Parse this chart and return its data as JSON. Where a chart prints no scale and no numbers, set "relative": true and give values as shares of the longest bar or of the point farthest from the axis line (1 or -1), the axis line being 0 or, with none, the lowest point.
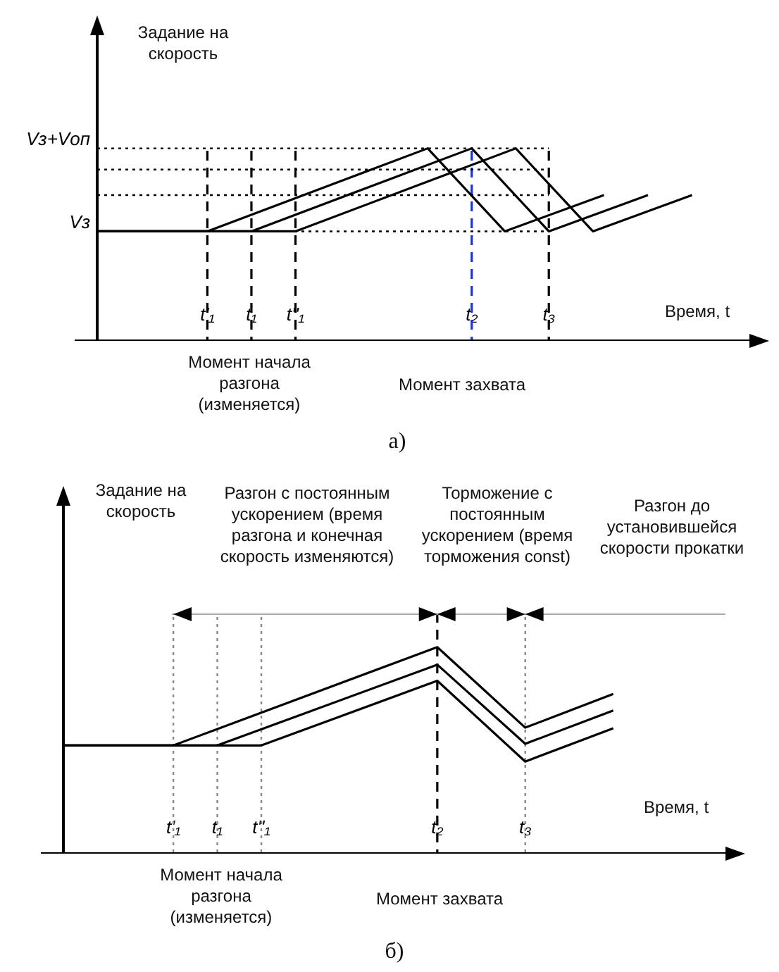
{
  "chart_data": [
    {
      "type": "line",
      "relative": true,
      "ylabel": "Задание на скорость",
      "xlabel": "Время, t",
      "categories": [
        null,
        null,
        null,
        null,
        null,
        null,
        null,
        null,
        null,
        null,
        "t'₁",
        null,
        null,
        null,
        "t₁",
        null,
        null,
        null,
        "t''₁",
        null,
        null,
        null,
        null,
        null,
        null,
        null,
        null,
        null,
        null,
        null,
        null,
        null,
        null,
        null,
        "t₂",
        null,
        null,
        null,
        null,
        null,
        null,
        "t₃",
        null,
        null,
        null,
        null,
        null,
        null,
        null,
        null,
        null,
        null,
        null,
        null,
        null,
        null,
        null,
        null,
        null,
        null,
        null,
        null
      ],
      "series": [
        {
          "color": "#000000",
          "values": [
            0.569,
            null,
            null,
            null,
            null,
            null,
            null,
            null,
            null,
            null,
            0.569,
            null,
            null,
            null,
            null,
            null,
            null,
            null,
            null,
            null,
            null,
            null,
            null,
            null,
            null,
            null,
            null,
            null,
            null,
            null,
            1,
            null,
            null,
            null,
            null,
            null,
            null,
            0.569,
            null,
            null,
            null,
            null,
            null,
            null,
            null,
            null,
            0.757,
            null,
            null,
            null,
            null,
            null,
            null,
            null,
            null,
            null,
            null,
            null,
            null,
            null,
            null,
            null
          ]
        },
        {
          "color": "#000000",
          "values": [
            0.569,
            null,
            null,
            null,
            null,
            null,
            null,
            null,
            null,
            null,
            null,
            null,
            null,
            null,
            0.569,
            null,
            null,
            null,
            null,
            null,
            null,
            null,
            null,
            null,
            null,
            null,
            null,
            null,
            null,
            null,
            null,
            null,
            null,
            null,
            1,
            null,
            null,
            null,
            null,
            null,
            null,
            0.569,
            null,
            null,
            null,
            null,
            null,
            null,
            null,
            null,
            0.757,
            null,
            null,
            null,
            null,
            null,
            null,
            null,
            null,
            null,
            null,
            null
          ]
        },
        {
          "color": "#000000",
          "values": [
            0.569,
            null,
            null,
            null,
            null,
            null,
            null,
            null,
            null,
            null,
            null,
            null,
            null,
            null,
            null,
            null,
            null,
            null,
            0.569,
            null,
            null,
            null,
            null,
            null,
            null,
            null,
            null,
            null,
            null,
            null,
            null,
            null,
            null,
            null,
            null,
            null,
            null,
            null,
            1,
            null,
            null,
            null,
            null,
            null,
            null,
            0.569,
            null,
            null,
            null,
            null,
            null,
            null,
            null,
            null,
            0.757,
            null,
            null,
            null,
            null,
            null,
            null,
            null
          ]
        }
      ],
      "ref_lines": [
        {
          "axis": "x",
          "value": "t'₁",
          "color": "#000000",
          "line_style": "dashed"
        },
        {
          "axis": "x",
          "value": "t₁",
          "color": "#000000",
          "line_style": "dashed"
        },
        {
          "axis": "x",
          "value": "t''₁",
          "color": "#000000",
          "line_style": "dashed"
        },
        {
          "axis": "x",
          "value": "t₂",
          "color": "#2233cc",
          "line_style": "dashed"
        },
        {
          "axis": "x",
          "value": "t₃",
          "color": "#000000",
          "line_style": "dashed"
        },
        {
          "axis": "y",
          "value": 1,
          "label": "Vз+Vоп",
          "color": "#000000",
          "line_style": "dotted"
        },
        {
          "axis": "y",
          "value": 0.89,
          "color": "#000000",
          "line_style": "dotted"
        },
        {
          "axis": "y",
          "value": 0.757,
          "color": "#000000",
          "line_style": "dotted"
        },
        {
          "axis": "y",
          "value": 0.569,
          "label": "Vз",
          "color": "#000000",
          "line_style": "dotted"
        }
      ],
      "annotations": [
        "Момент начала разгона (изменяется)",
        "Момент захвата",
        "а)"
      ],
      "line_style": "solid",
      "marker": "none",
      "legend": false,
      "grid": false
    },
    {
      "type": "line",
      "relative": true,
      "ylabel": "Задание на скорость",
      "xlabel": "Время, t",
      "categories": [
        null,
        null,
        null,
        null,
        null,
        null,
        null,
        null,
        null,
        null,
        "t'₁",
        null,
        null,
        null,
        "t₁",
        null,
        null,
        null,
        "t''₁",
        null,
        null,
        null,
        null,
        null,
        null,
        null,
        null,
        null,
        null,
        null,
        null,
        null,
        null,
        null,
        "t₂",
        null,
        null,
        null,
        null,
        null,
        null,
        null,
        "t₃",
        null,
        null,
        null,
        null,
        null,
        null,
        null,
        null,
        null,
        null,
        null,
        null,
        null,
        null,
        null,
        null,
        null,
        null,
        null,
        null
      ],
      "series": [
        {
          "color": "#000000",
          "values": [
            0.524,
            null,
            null,
            null,
            null,
            null,
            null,
            null,
            null,
            null,
            0.524,
            null,
            null,
            null,
            null,
            null,
            null,
            null,
            null,
            null,
            null,
            null,
            null,
            null,
            null,
            null,
            null,
            null,
            null,
            null,
            null,
            null,
            null,
            null,
            1,
            null,
            null,
            null,
            null,
            null,
            null,
            null,
            0.61,
            null,
            null,
            null,
            null,
            null,
            null,
            null,
            0.773,
            null,
            null,
            null,
            null,
            null,
            null,
            null,
            null,
            null,
            null,
            null,
            null
          ]
        },
        {
          "color": "#000000",
          "values": [
            0.524,
            null,
            null,
            null,
            null,
            null,
            null,
            null,
            null,
            null,
            null,
            null,
            null,
            null,
            0.524,
            null,
            null,
            null,
            null,
            null,
            null,
            null,
            null,
            null,
            null,
            null,
            null,
            null,
            null,
            null,
            null,
            null,
            null,
            null,
            0.915,
            null,
            null,
            null,
            null,
            null,
            null,
            null,
            0.532,
            null,
            null,
            null,
            null,
            null,
            null,
            null,
            0.693,
            null,
            null,
            null,
            null,
            null,
            null,
            null,
            null,
            null,
            null,
            null,
            null
          ]
        },
        {
          "color": "#000000",
          "values": [
            0.524,
            null,
            null,
            null,
            null,
            null,
            null,
            null,
            null,
            null,
            null,
            null,
            null,
            null,
            null,
            null,
            null,
            null,
            0.524,
            null,
            null,
            null,
            null,
            null,
            null,
            null,
            null,
            null,
            null,
            null,
            null,
            null,
            null,
            null,
            0.837,
            null,
            null,
            null,
            null,
            null,
            null,
            null,
            0.446,
            null,
            null,
            null,
            null,
            null,
            null,
            null,
            0.607,
            null,
            null,
            null,
            null,
            null,
            null,
            null,
            null,
            null,
            null,
            null,
            null
          ]
        }
      ],
      "ref_lines": [
        {
          "axis": "x",
          "value": "t'₁",
          "color": "#888888",
          "line_style": "dotted"
        },
        {
          "axis": "x",
          "value": "t₁",
          "color": "#888888",
          "line_style": "dotted"
        },
        {
          "axis": "x",
          "value": "t''₁",
          "color": "#888888",
          "line_style": "dotted"
        },
        {
          "axis": "x",
          "value": "t₂",
          "color": "#000000",
          "line_style": "dashed"
        },
        {
          "axis": "x",
          "value": "t₃",
          "color": "#888888",
          "line_style": "dotted"
        }
      ],
      "annotations": [
        "Разгон с постоянным ускорением (время разгона и конечная скорость изменяются)",
        "Торможение с постоянным ускорением (время торможения const)",
        "Разгон до установившейся скорости прокатки",
        "Момент начала разгона (изменяется)",
        "Момент захвата",
        "б)"
      ],
      "line_style": "solid",
      "marker": "none",
      "legend": false,
      "grid": false
    }
  ]
}
